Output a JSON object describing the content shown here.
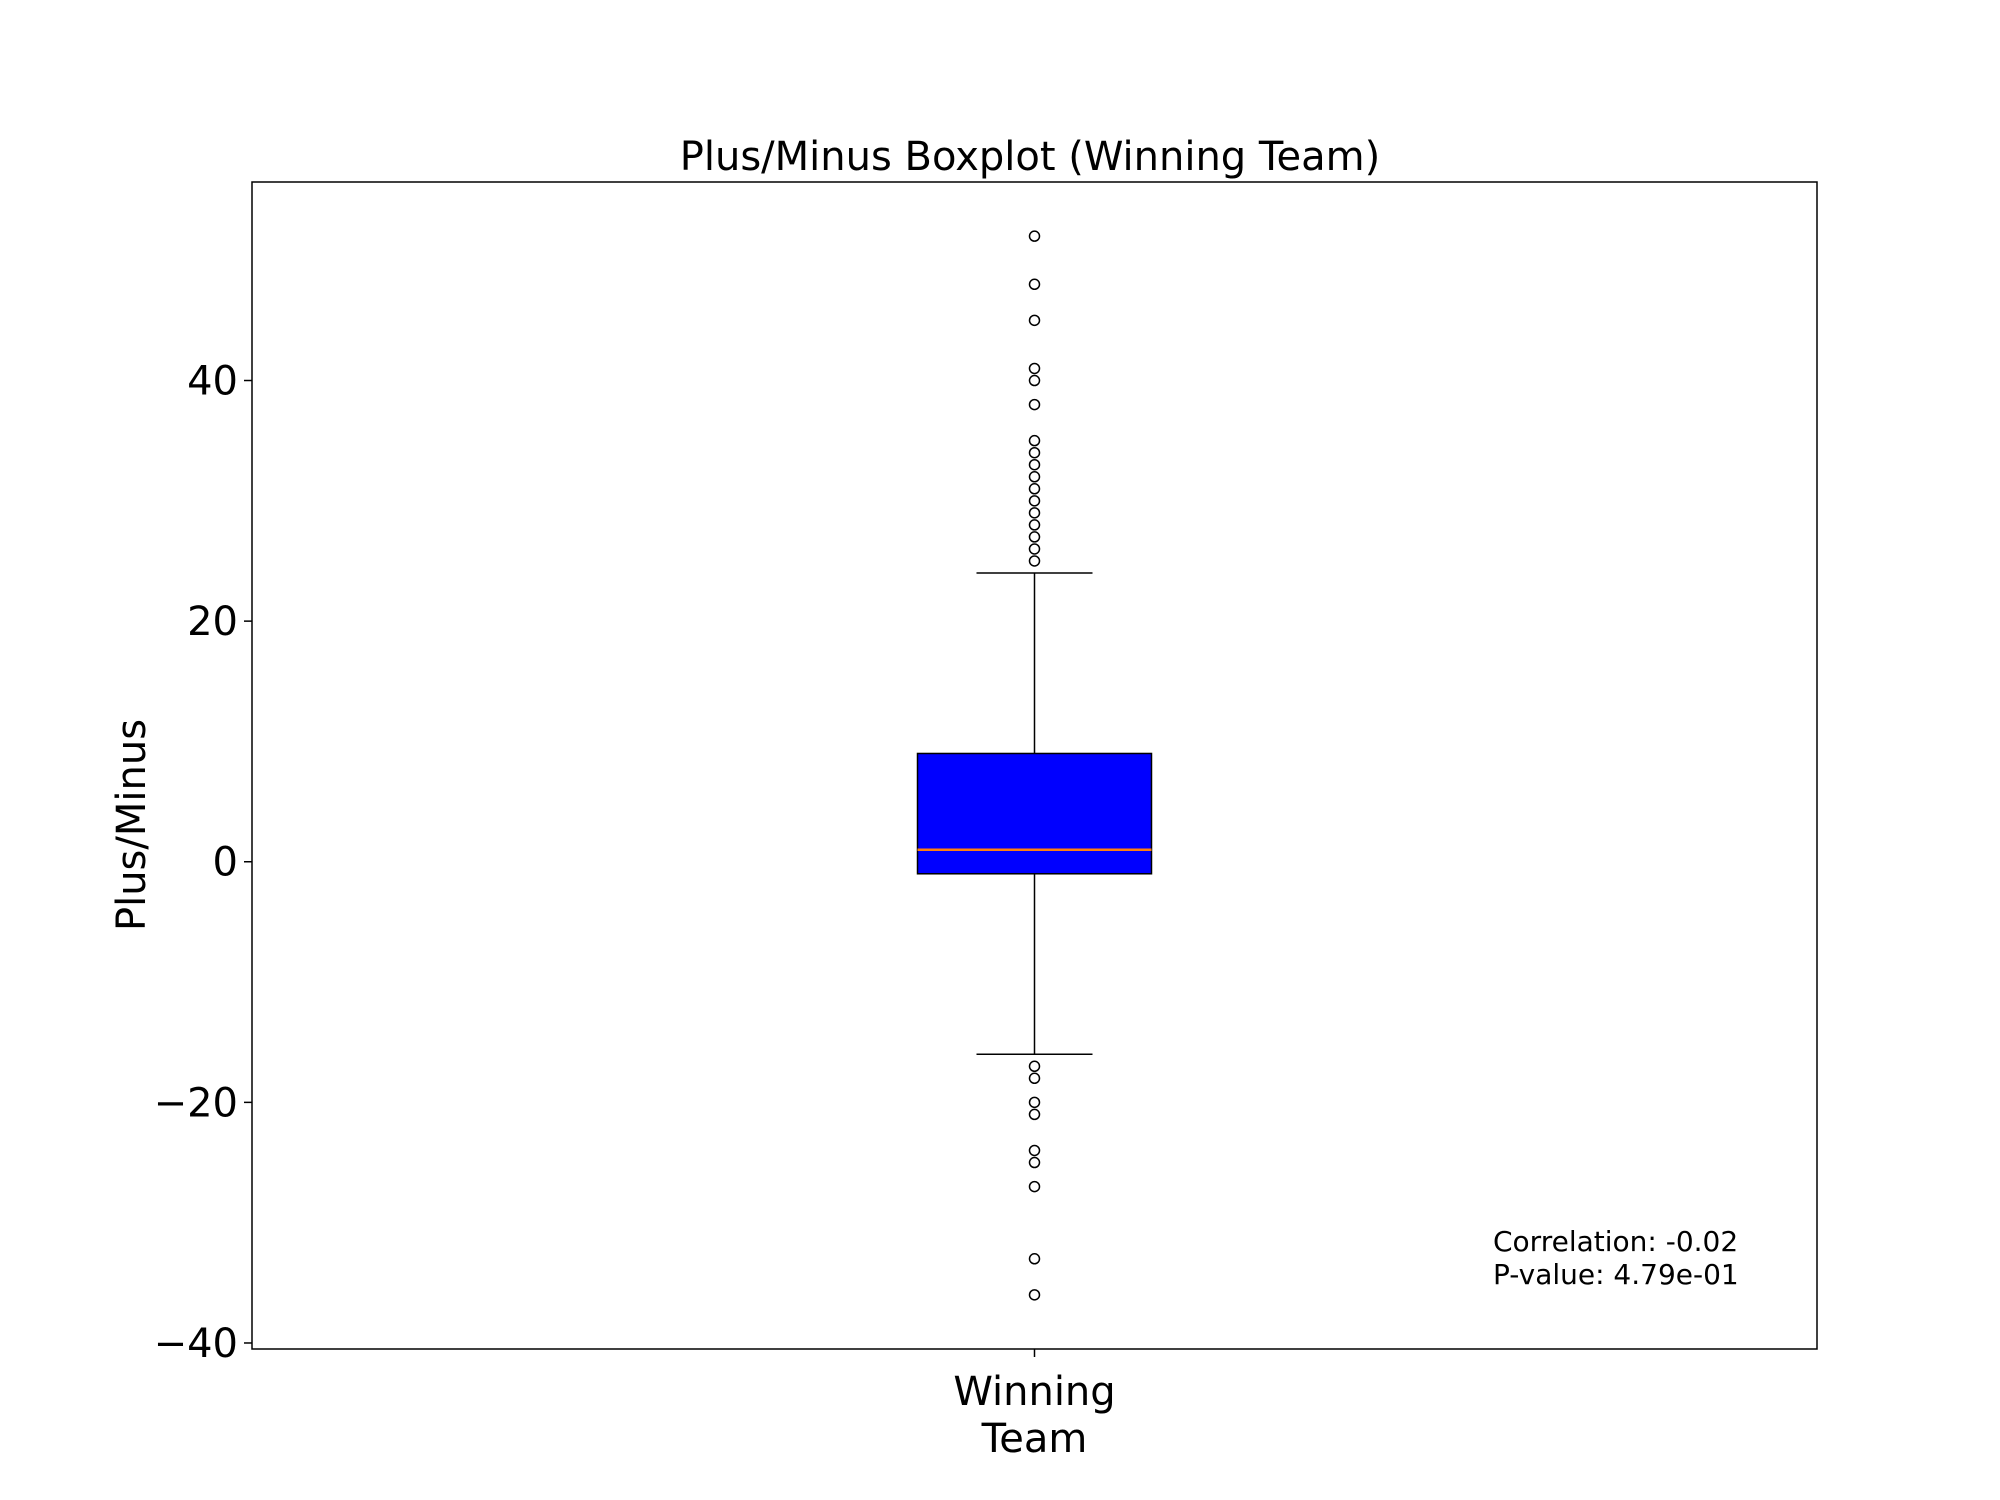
{
  "chart_data": {
    "type": "boxplot",
    "title": "Plus/Minus Boxplot (Winning Team)",
    "xlabel": "",
    "ylabel": "Plus/Minus",
    "ylim": [
      -40.5,
      56.5
    ],
    "yticks": [
      -40,
      -20,
      0,
      20,
      40
    ],
    "ytick_labels": [
      "−40",
      "−20",
      "0",
      "20",
      "40"
    ],
    "categories": [
      "Winning\nTeam"
    ],
    "boxes": [
      {
        "category": "Winning\nTeam",
        "whisker_low": -16,
        "q1": -1,
        "median": 1,
        "q3": 9,
        "whisker_high": 24,
        "outliers": [
          52,
          48,
          45,
          41,
          40,
          38,
          35,
          34,
          33,
          32,
          31,
          30,
          29,
          28,
          27,
          26,
          25,
          -17,
          -18,
          -20,
          -21,
          -24,
          -25,
          -27,
          -33,
          -36
        ]
      }
    ],
    "annotation": {
      "lines": [
        "Correlation: -0.02",
        "P-value: 4.79e-01"
      ],
      "placement": "bottom-right"
    },
    "colors": {
      "box_fill": "#0000ff",
      "median": "#ff7f0e",
      "edge": "#000000"
    },
    "grid": false,
    "legend": "none"
  }
}
